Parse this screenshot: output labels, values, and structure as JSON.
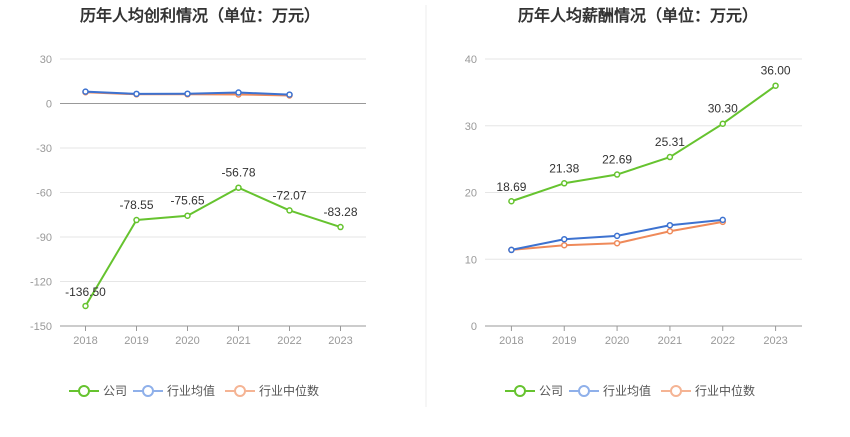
{
  "chart_data": [
    {
      "type": "line",
      "title": "历年人均创利情况（单位：万元）",
      "categories": [
        "2018",
        "2019",
        "2020",
        "2021",
        "2022",
        "2023"
      ],
      "ylim": [
        -150,
        30
      ],
      "yticks": [
        30,
        0,
        -30,
        -60,
        -90,
        -120,
        -150
      ],
      "grid": true,
      "legend_position": "bottom",
      "series": [
        {
          "name": "公司",
          "color": "#66c32f",
          "values": [
            -136.5,
            -78.55,
            -75.65,
            -56.78,
            -72.07,
            -83.28
          ],
          "labels": [
            "-136.50",
            "-78.55",
            "-75.65",
            "-56.78",
            "-72.07",
            "-83.28"
          ]
        },
        {
          "name": "行业均值",
          "color": "#3d72d0",
          "values": [
            8.0,
            6.5,
            6.6,
            7.4,
            6.0,
            null
          ]
        },
        {
          "name": "行业中位数",
          "color": "#ef8a5a",
          "values": [
            7.6,
            6.2,
            6.2,
            6.1,
            5.4,
            null
          ]
        }
      ]
    },
    {
      "type": "line",
      "title": "历年人均薪酬情况（单位：万元）",
      "categories": [
        "2018",
        "2019",
        "2020",
        "2021",
        "2022",
        "2023"
      ],
      "ylim": [
        0,
        40
      ],
      "yticks": [
        40,
        30,
        20,
        10,
        0
      ],
      "grid": true,
      "legend_position": "bottom",
      "series": [
        {
          "name": "公司",
          "color": "#66c32f",
          "values": [
            18.69,
            21.38,
            22.69,
            25.31,
            30.3,
            36.0
          ],
          "labels": [
            "18.69",
            "21.38",
            "22.69",
            "25.31",
            "30.30",
            "36.00"
          ]
        },
        {
          "name": "行业均值",
          "color": "#3d72d0",
          "values": [
            11.4,
            13.0,
            13.5,
            15.1,
            15.9,
            null
          ]
        },
        {
          "name": "行业中位数",
          "color": "#ef8a5a",
          "values": [
            11.4,
            12.1,
            12.4,
            14.2,
            15.6,
            null
          ]
        }
      ]
    }
  ],
  "legend": {
    "items": [
      {
        "label": "公司",
        "color": "#66c32f"
      },
      {
        "label": "行业均值",
        "color": "#8fb0ea"
      },
      {
        "label": "行业中位数",
        "color": "#f5b494"
      }
    ]
  },
  "colors": {
    "grid": "#e6e6e6",
    "axis": "#999999",
    "divider": "#eeeeee"
  }
}
